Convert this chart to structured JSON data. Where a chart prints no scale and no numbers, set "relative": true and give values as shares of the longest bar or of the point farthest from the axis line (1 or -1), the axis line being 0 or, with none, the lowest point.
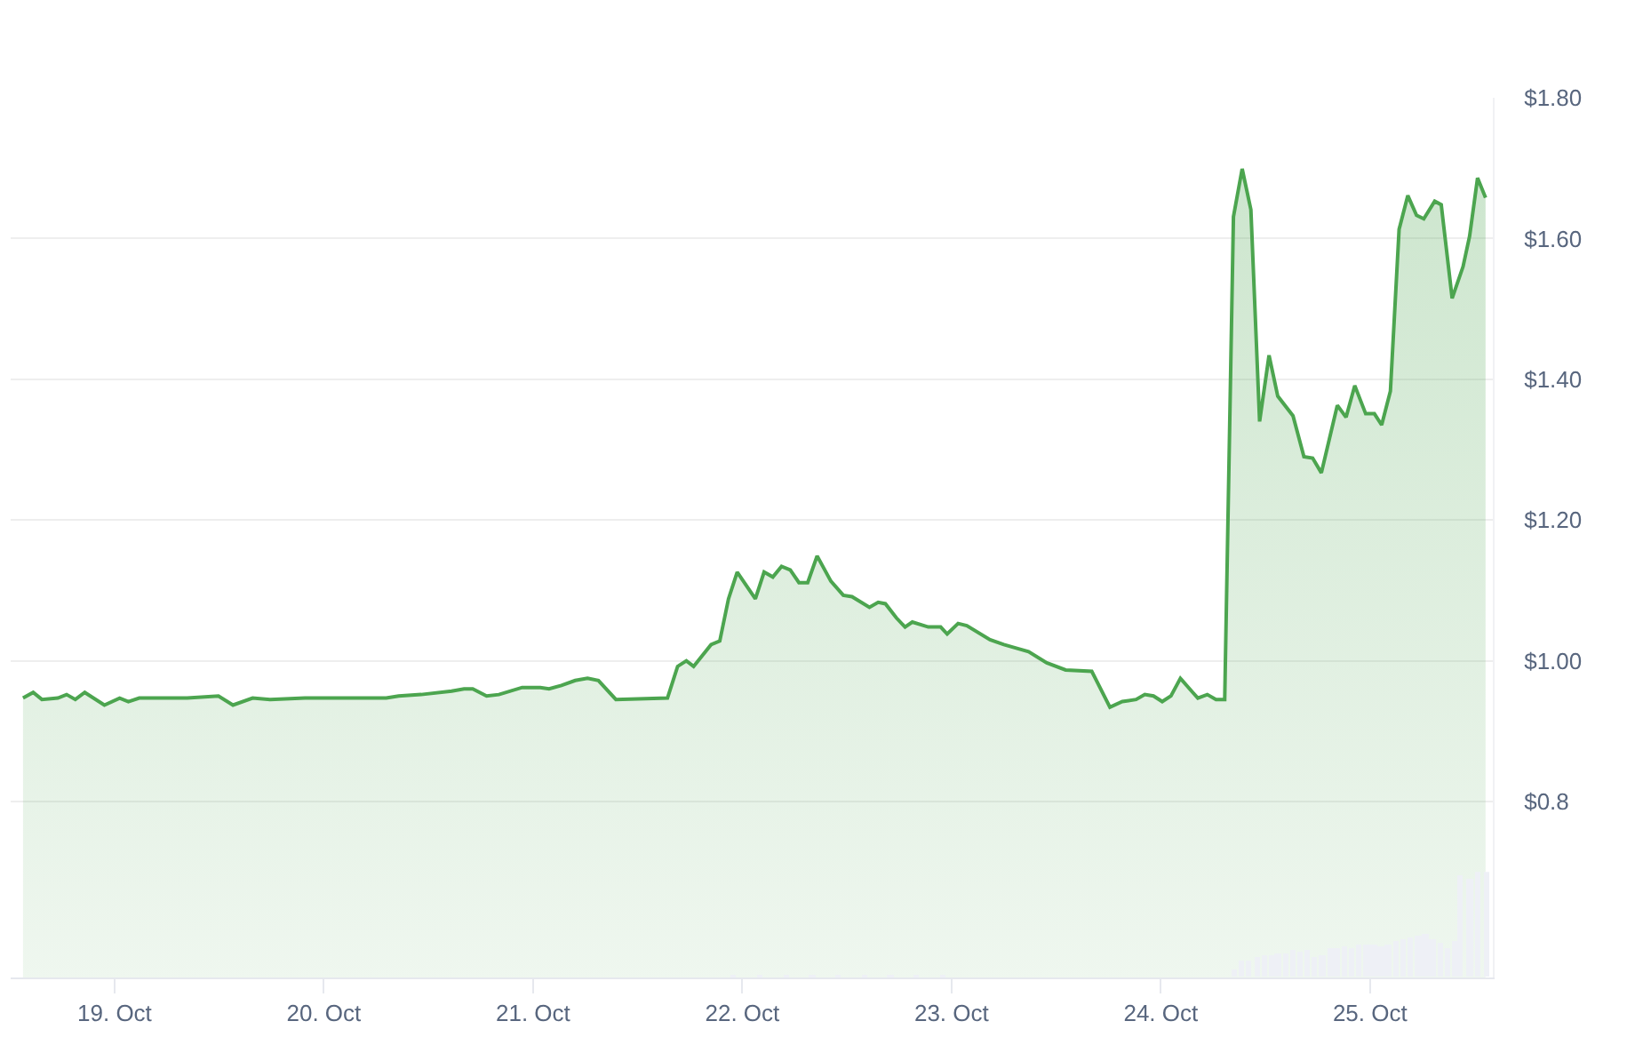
{
  "chart_data": [
    {
      "type": "area",
      "xlim": [
        "--10-18T12:05",
        "--10-25T14:05"
      ],
      "ylim": [
        0.55,
        1.8
      ],
      "yticks": [
        {
          "value": 0.8,
          "label": "$0.8"
        },
        {
          "value": 1.0,
          "label": "$1.00"
        },
        {
          "value": 1.2,
          "label": "$1.20"
        },
        {
          "value": 1.4,
          "label": "$1.40"
        },
        {
          "value": 1.6,
          "label": "$1.60"
        },
        {
          "value": 1.8,
          "label": "$1.80"
        }
      ],
      "tick_labels": "y",
      "grid": "y",
      "series": [
        {
          "color": "#4ca54f",
          "x": [
            "--10-18T13:30",
            "--10-18T14:40",
            "--10-18T15:40",
            "--10-18T17:30",
            "--10-18T18:30",
            "--10-18T19:30",
            "--10-18T20:35",
            "--10-18T22:50",
            "--10-19T00:35",
            "--10-19T01:35",
            "--10-19T02:50",
            "--10-19T08:20",
            "--10-19T11:55",
            "--10-19T13:35",
            "--10-19T15:50",
            "--10-19T17:50",
            "--10-19T21:50",
            "--10-20T01:55",
            "--10-20T07:10",
            "--10-20T08:35",
            "--10-20T11:10",
            "--10-20T14:40",
            "--10-20T16:05",
            "--10-20T17:05",
            "--10-20T18:40",
            "--10-20T20:05",
            "--10-20T22:45",
            "--10-21T00:50",
            "--10-21T01:50",
            "--10-21T03:15",
            "--10-21T04:50",
            "--10-21T06:15",
            "--10-21T07:30",
            "--10-21T09:30",
            "--10-21T15:25",
            "--10-21T16:35",
            "--10-21T17:35",
            "--10-21T18:25",
            "--10-21T20:25",
            "--10-21T21:25",
            "--10-21T22:25",
            "--10-21T23:25",
            "--10-22T01:30",
            "--10-22T02:30",
            "--10-22T03:30",
            "--10-22T04:30",
            "--10-22T05:30",
            "--10-22T06:30",
            "--10-22T07:30",
            "--10-22T08:35",
            "--10-22T10:10",
            "--10-22T11:35",
            "--10-22T12:35",
            "--10-22T14:35",
            "--10-22T15:35",
            "--10-22T16:25",
            "--10-22T17:40",
            "--10-22T18:40",
            "--10-22T19:30",
            "--10-22T21:20",
            "--10-22T22:45",
            "--10-22T23:30",
            "--10-23T00:45",
            "--10-23T01:45",
            "--10-23T04:25",
            "--10-23T06:00",
            "--10-23T07:25",
            "--10-23T08:50",
            "--10-23T10:55",
            "--10-23T13:05",
            "--10-23T16:05",
            "--10-23T18:10",
            "--10-23T19:35",
            "--10-23T21:10",
            "--10-23T22:10",
            "--10-23T23:10",
            "--10-24T00:10",
            "--10-24T01:10",
            "--10-24T02:15",
            "--10-24T03:40",
            "--10-24T04:15",
            "--10-24T05:20",
            "--10-24T06:20",
            "--10-24T07:20",
            "--10-24T08:20",
            "--10-24T09:20",
            "--10-24T10:20",
            "--10-24T11:20",
            "--10-24T12:25",
            "--10-24T13:25",
            "--10-24T15:10",
            "--10-24T16:25",
            "--10-24T17:25",
            "--10-24T18:25",
            "--10-24T20:15",
            "--10-24T21:15",
            "--10-24T22:15",
            "--10-24T23:30",
            "--10-25T00:30",
            "--10-25T01:20",
            "--10-25T02:20",
            "--10-25T03:20",
            "--10-25T04:20",
            "--10-25T05:20",
            "--10-25T06:10",
            "--10-25T07:25",
            "--10-25T08:10",
            "--10-25T09:25",
            "--10-25T10:40",
            "--10-25T11:25",
            "--10-25T12:20",
            "--10-25T13:15"
          ],
          "values": [
            0.947,
            0.955,
            0.945,
            0.947,
            0.952,
            0.945,
            0.955,
            0.937,
            0.947,
            0.942,
            0.947,
            0.947,
            0.95,
            0.937,
            0.947,
            0.945,
            0.947,
            0.947,
            0.947,
            0.95,
            0.952,
            0.957,
            0.96,
            0.96,
            0.95,
            0.952,
            0.962,
            0.962,
            0.96,
            0.965,
            0.972,
            0.975,
            0.972,
            0.945,
            0.947,
            0.992,
            1.0,
            0.992,
            1.023,
            1.028,
            1.088,
            1.126,
            1.088,
            1.126,
            1.119,
            1.134,
            1.129,
            1.111,
            1.111,
            1.149,
            1.113,
            1.093,
            1.091,
            1.076,
            1.083,
            1.081,
            1.061,
            1.048,
            1.055,
            1.048,
            1.048,
            1.038,
            1.053,
            1.05,
            1.03,
            1.023,
            1.018,
            1.013,
            0.997,
            0.987,
            0.985,
            0.934,
            0.942,
            0.945,
            0.952,
            0.95,
            0.942,
            0.95,
            0.975,
            0.955,
            0.947,
            0.952,
            0.945,
            0.945,
            1.631,
            1.699,
            1.641,
            1.34,
            1.434,
            1.376,
            1.348,
            1.29,
            1.288,
            1.267,
            1.363,
            1.346,
            1.391,
            1.351,
            1.351,
            1.335,
            1.383,
            1.613,
            1.661,
            1.633,
            1.628,
            1.653,
            1.648,
            1.515,
            1.56,
            1.603,
            1.686,
            1.658
          ]
        }
      ]
    },
    {
      "type": "bar",
      "relative": true,
      "tick_labels": "x",
      "xlim": [
        "--10-18T12:05",
        "--10-25T14:05"
      ],
      "xticks": [
        {
          "value": "--10-19",
          "label": "19. Oct"
        },
        {
          "value": "--10-20",
          "label": "20. Oct"
        },
        {
          "value": "--10-21",
          "label": "21. Oct"
        },
        {
          "value": "--10-22",
          "label": "22. Oct"
        },
        {
          "value": "--10-23",
          "label": "23. Oct"
        },
        {
          "value": "--10-24",
          "label": "24. Oct"
        },
        {
          "value": "--10-25",
          "label": "25. Oct"
        }
      ],
      "series": [
        {
          "color": "#eef0f6",
          "x": [
            "--10-21T23:00",
            "--10-22T02:00",
            "--10-22T05:00",
            "--10-22T08:00",
            "--10-22T11:00",
            "--10-22T14:00",
            "--10-22T17:00",
            "--10-22T20:00",
            "--10-22T23:00",
            "--10-24T08:25",
            "--10-24T09:15",
            "--10-24T10:05",
            "--10-24T11:00",
            "--10-24T11:50",
            "--10-24T12:40",
            "--10-24T13:25",
            "--10-24T14:20",
            "--10-24T15:10",
            "--10-24T16:00",
            "--10-24T16:50",
            "--10-24T17:40",
            "--10-24T18:30",
            "--10-24T19:25",
            "--10-24T20:10",
            "--10-24T21:05",
            "--10-24T21:55",
            "--10-24T22:45",
            "--10-24T23:35",
            "--10-25T00:25",
            "--10-25T01:15",
            "--10-25T02:05",
            "--10-25T02:55",
            "--10-25T03:50",
            "--10-25T04:35",
            "--10-25T05:30",
            "--10-25T06:20",
            "--10-25T07:10",
            "--10-25T08:00",
            "--10-25T08:55",
            "--10-25T09:40",
            "--10-25T10:20",
            "--10-25T11:25",
            "--10-25T12:25",
            "--10-25T13:25"
          ],
          "values": [
            0.02,
            0.02,
            0.02,
            0.02,
            0.02,
            0.02,
            0.02,
            0.02,
            0.02,
            0.07,
            0.15,
            0.16,
            0.2,
            0.21,
            0.21,
            0.23,
            0.23,
            0.26,
            0.25,
            0.26,
            0.2,
            0.21,
            0.28,
            0.28,
            0.3,
            0.28,
            0.31,
            0.31,
            0.31,
            0.3,
            0.31,
            0.34,
            0.36,
            0.38,
            0.39,
            0.41,
            0.36,
            0.33,
            0.28,
            0.34,
            0.97,
            0.93,
            1,
            1
          ]
        }
      ]
    }
  ]
}
